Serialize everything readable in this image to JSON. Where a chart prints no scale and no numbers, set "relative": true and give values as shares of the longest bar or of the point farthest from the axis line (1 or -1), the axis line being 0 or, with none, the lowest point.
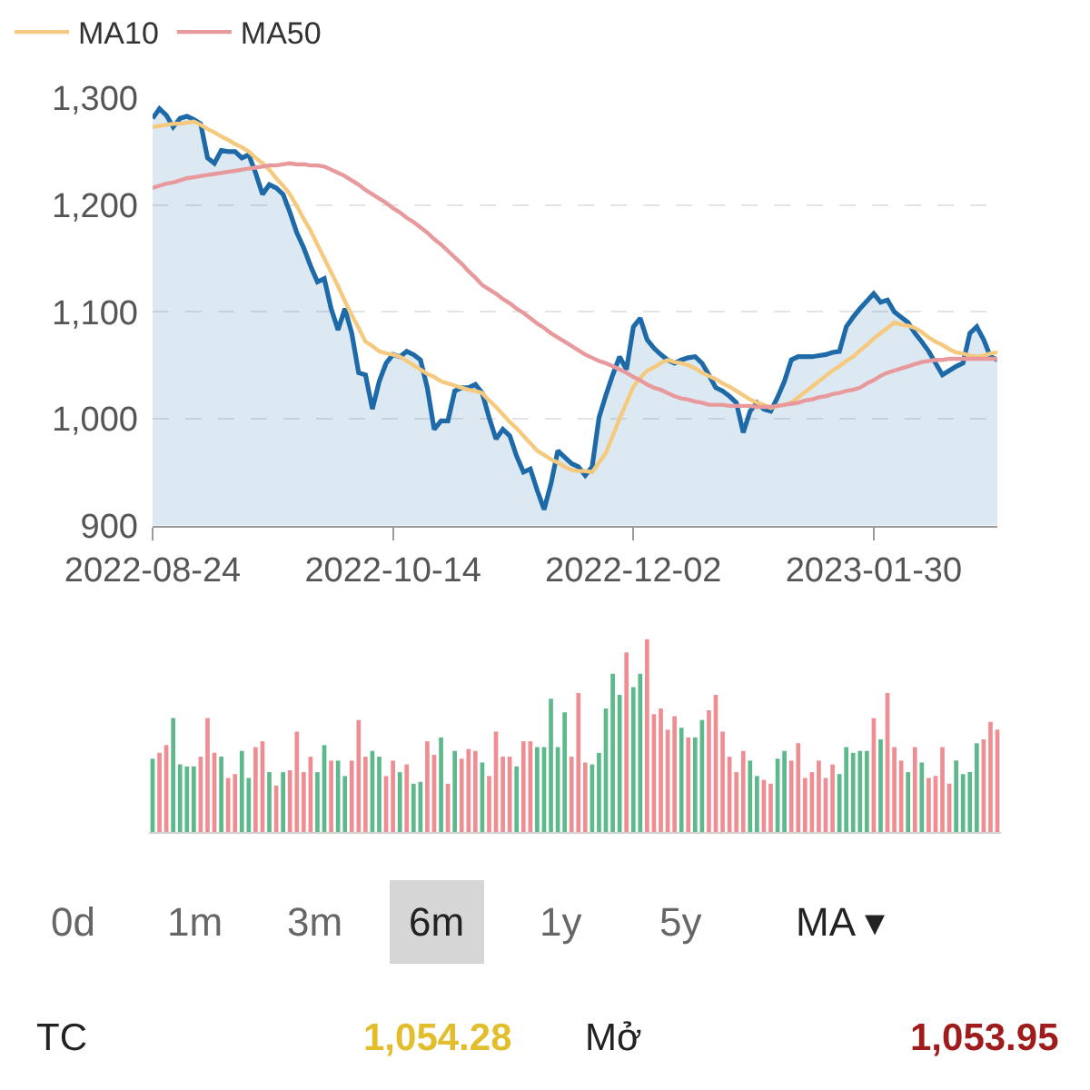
{
  "chart_data": [
    {
      "type": "area",
      "categories": [
        "2022-08-24",
        null,
        null,
        null,
        null,
        null,
        null,
        null,
        null,
        null,
        null,
        null,
        null,
        null,
        null,
        null,
        null,
        null,
        null,
        null,
        null,
        null,
        null,
        null,
        null,
        null,
        null,
        null,
        null,
        null,
        null,
        null,
        null,
        null,
        null,
        "2022-10-14",
        null,
        null,
        null,
        null,
        null,
        null,
        null,
        null,
        null,
        null,
        null,
        null,
        null,
        null,
        null,
        null,
        null,
        null,
        null,
        null,
        null,
        null,
        null,
        null,
        null,
        null,
        null,
        null,
        null,
        null,
        null,
        null,
        null,
        null,
        "2022-12-02",
        null,
        null,
        null,
        null,
        null,
        null,
        null,
        null,
        null,
        null,
        null,
        null,
        null,
        null,
        null,
        null,
        null,
        null,
        null,
        null,
        null,
        null,
        null,
        null,
        null,
        null,
        null,
        null,
        null,
        null,
        null,
        null,
        null,
        null,
        "2023-01-30",
        null,
        null,
        null,
        null,
        null,
        null,
        null,
        null,
        null,
        null,
        null,
        null,
        null,
        null,
        null,
        null,
        null,
        null
      ],
      "ylim": [
        900,
        1300
      ],
      "yticks": [
        900,
        {
          "value": 1000,
          "label": "1,000"
        },
        {
          "value": 1100,
          "label": "1,100"
        },
        {
          "value": 1200,
          "label": "1,200"
        },
        {
          "value": 1300,
          "label": "1,300"
        }
      ],
      "grid": "y",
      "legend": "top left",
      "series": [
        {
          "type": "area",
          "color": "#1e6aa8",
          "values": [
            1281,
            1290,
            1284,
            1273,
            1281,
            1283,
            1280,
            1276,
            1244,
            1239,
            1251,
            1250,
            1250,
            1244,
            1247,
            1230,
            1210,
            1219,
            1216,
            1210,
            1193,
            1174,
            1160,
            1143,
            1128,
            1131,
            1103,
            1083,
            1103,
            1080,
            1043,
            1041,
            1009,
            1035,
            1052,
            1060,
            1058,
            1063,
            1060,
            1055,
            1029,
            990,
            998,
            998,
            1026,
            1029,
            1029,
            1032,
            1024,
            1001,
            981,
            990,
            984,
            965,
            950,
            953,
            933,
            915,
            939,
            970,
            964,
            958,
            955,
            947,
            955,
            1001,
            1022,
            1041,
            1058,
            1046,
            1086,
            1094,
            1074,
            1066,
            1060,
            1055,
            1052,
            1055,
            1057,
            1058,
            1052,
            1041,
            1029,
            1026,
            1021,
            1015,
            987,
            1007,
            1015,
            1009,
            1007,
            1020,
            1035,
            1055,
            1058,
            1058,
            1058,
            1059,
            1060,
            1062,
            1063,
            1086,
            1095,
            1103,
            1110,
            1117,
            1109,
            1111,
            1100,
            1095,
            1090,
            1080,
            1072,
            1063,
            1052,
            1041,
            1045,
            1049,
            1052,
            1080,
            1086,
            1074,
            1058,
            1055
          ]
        },
        {
          "type": "line",
          "name": "MA10",
          "color": "#f5c97e",
          "values": [
            1273,
            1274,
            1275,
            1276,
            1276,
            1277,
            1278,
            1275,
            1271,
            1268,
            1264,
            1261,
            1257,
            1254,
            1250,
            1244,
            1239,
            1233,
            1225,
            1218,
            1210,
            1199,
            1187,
            1176,
            1163,
            1150,
            1137,
            1124,
            1110,
            1097,
            1085,
            1072,
            1068,
            1063,
            1061,
            1060,
            1058,
            1054,
            1050,
            1046,
            1042,
            1039,
            1035,
            1033,
            1031,
            1029,
            1027,
            1026,
            1024,
            1017,
            1011,
            1004,
            997,
            991,
            984,
            977,
            970,
            966,
            962,
            959,
            955,
            952,
            951,
            951,
            950,
            959,
            968,
            984,
            1000,
            1015,
            1030,
            1038,
            1045,
            1048,
            1052,
            1055,
            1053,
            1052,
            1050,
            1047,
            1043,
            1040,
            1037,
            1033,
            1030,
            1026,
            1022,
            1018,
            1015,
            1013,
            1010,
            1012,
            1013,
            1015,
            1020,
            1025,
            1030,
            1035,
            1040,
            1045,
            1049,
            1054,
            1058,
            1064,
            1069,
            1075,
            1080,
            1085,
            1090,
            1088,
            1087,
            1085,
            1081,
            1076,
            1072,
            1069,
            1065,
            1062,
            1061,
            1059,
            1058,
            1059,
            1061,
            1062
          ]
        },
        {
          "type": "line",
          "name": "MA50",
          "color": "#e7999b",
          "values": [
            1216,
            1218,
            1220,
            1221,
            1223,
            1225,
            1226,
            1227,
            1228,
            1229,
            1230,
            1231,
            1232,
            1233,
            1234,
            1235,
            1236,
            1237,
            1237,
            1238,
            1239,
            1238,
            1238,
            1237,
            1237,
            1236,
            1233,
            1230,
            1227,
            1223,
            1219,
            1214,
            1210,
            1206,
            1202,
            1197,
            1193,
            1188,
            1184,
            1179,
            1174,
            1168,
            1163,
            1157,
            1151,
            1145,
            1138,
            1132,
            1125,
            1121,
            1117,
            1112,
            1108,
            1103,
            1099,
            1094,
            1089,
            1085,
            1080,
            1076,
            1072,
            1068,
            1064,
            1060,
            1057,
            1054,
            1052,
            1049,
            1046,
            1043,
            1039,
            1036,
            1032,
            1029,
            1027,
            1024,
            1021,
            1019,
            1018,
            1016,
            1015,
            1013,
            1013,
            1013,
            1012,
            1012,
            1012,
            1012,
            1011,
            1011,
            1011,
            1012,
            1013,
            1014,
            1015,
            1017,
            1018,
            1020,
            1021,
            1023,
            1024,
            1026,
            1027,
            1029,
            1033,
            1036,
            1040,
            1043,
            1045,
            1047,
            1049,
            1051,
            1053,
            1054,
            1055,
            1055,
            1056,
            1056,
            1056,
            1056,
            1056,
            1056,
            1056,
            1056
          ]
        }
      ]
    },
    {
      "type": "bar",
      "relative": true,
      "categories": [
        null,
        null,
        null,
        null,
        null,
        null,
        null,
        null,
        null,
        null,
        null,
        null,
        null,
        null,
        null,
        null,
        null,
        null,
        null,
        null,
        null,
        null,
        null,
        null,
        null,
        null,
        null,
        null,
        null,
        null,
        null,
        null,
        null,
        null,
        null,
        null,
        null,
        null,
        null,
        null,
        null,
        null,
        null,
        null,
        null,
        null,
        null,
        null,
        null,
        null,
        null,
        null,
        null,
        null,
        null,
        null,
        null,
        null,
        null,
        null,
        null,
        null,
        null,
        null,
        null,
        null,
        null,
        null,
        null,
        null,
        null,
        null,
        null,
        null,
        null,
        null,
        null,
        null,
        null,
        null,
        null,
        null,
        null,
        null,
        null,
        null,
        null,
        null,
        null,
        null,
        null,
        null,
        null,
        null,
        null,
        null,
        null,
        null,
        null,
        null,
        null,
        null,
        null,
        null,
        null,
        null,
        null,
        null,
        null,
        null,
        null,
        null,
        null,
        null,
        null,
        null,
        null,
        null,
        null,
        null,
        null,
        null,
        null,
        null
      ],
      "values": [
        0.38,
        0.41,
        0.45,
        0.59,
        0.35,
        0.34,
        0.34,
        0.39,
        0.59,
        0.41,
        0.39,
        0.28,
        0.3,
        0.42,
        0.28,
        0.44,
        0.47,
        0.31,
        0.24,
        0.31,
        0.32,
        0.52,
        0.31,
        0.39,
        0.31,
        0.45,
        0.37,
        0.37,
        0.29,
        0.37,
        0.58,
        0.39,
        0.42,
        0.39,
        0.29,
        0.37,
        0.31,
        0.35,
        0.25,
        0.26,
        0.47,
        0.4,
        0.49,
        0.25,
        0.42,
        0.38,
        0.43,
        0.42,
        0.36,
        0.29,
        0.52,
        0.39,
        0.39,
        0.34,
        0.47,
        0.47,
        0.44,
        0.44,
        0.69,
        0.44,
        0.62,
        0.39,
        0.72,
        0.36,
        0.35,
        0.41,
        0.64,
        0.82,
        0.71,
        0.93,
        0.75,
        0.82,
        1.0,
        0.61,
        0.64,
        0.53,
        0.6,
        0.54,
        0.49,
        0.49,
        0.58,
        0.63,
        0.71,
        0.52,
        0.39,
        0.31,
        0.42,
        0.37,
        0.29,
        0.27,
        0.25,
        0.38,
        0.42,
        0.37,
        0.46,
        0.28,
        0.31,
        0.37,
        0.28,
        0.35,
        0.3,
        0.44,
        0.41,
        0.42,
        0.42,
        0.59,
        0.48,
        0.72,
        0.44,
        0.37,
        0.31,
        0.44,
        0.36,
        0.28,
        0.29,
        0.44,
        0.25,
        0.37,
        0.3,
        0.31,
        0.46,
        0.48,
        0.57,
        0.53
      ],
      "colors": [
        "#5bb98b",
        "#ee8e92",
        "#ee8e92",
        "#5bb98b",
        "#5bb98b",
        "#5bb98b",
        "#5bb98b",
        "#ee8e92",
        "#ee8e92",
        "#ee8e92",
        "#5bb98b",
        "#ee8e92",
        "#ee8e92",
        "#5bb98b",
        "#5bb98b",
        "#ee8e92",
        "#ee8e92",
        "#5bb98b",
        "#ee8e92",
        "#5bb98b",
        "#ee8e92",
        "#ee8e92",
        "#ee8e92",
        "#ee8e92",
        "#5bb98b",
        "#5bb98b",
        "#ee8e92",
        "#5bb98b",
        "#5bb98b",
        "#ee8e92",
        "#ee8e92",
        "#ee8e92",
        "#5bb98b",
        "#5bb98b",
        "#ee8e92",
        "#ee8e92",
        "#5bb98b",
        "#ee8e92",
        "#5bb98b",
        "#5bb98b",
        "#ee8e92",
        "#ee8e92",
        "#5bb98b",
        "#ee8e92",
        "#5bb98b",
        "#ee8e92",
        "#ee8e92",
        "#ee8e92",
        "#5bb98b",
        "#ee8e92",
        "#ee8e92",
        "#ee8e92",
        "#ee8e92",
        "#5bb98b",
        "#ee8e92",
        "#ee8e92",
        "#5bb98b",
        "#5bb98b",
        "#5bb98b",
        "#5bb98b",
        "#5bb98b",
        "#ee8e92",
        "#ee8e92",
        "#ee8e92",
        "#5bb98b",
        "#5bb98b",
        "#5bb98b",
        "#5bb98b",
        "#5bb98b",
        "#ee8e92",
        "#5bb98b",
        "#5bb98b",
        "#ee8e92",
        "#ee8e92",
        "#ee8e92",
        "#ee8e92",
        "#ee8e92",
        "#5bb98b",
        "#ee8e92",
        "#5bb98b",
        "#5bb98b",
        "#ee8e92",
        "#ee8e92",
        "#ee8e92",
        "#ee8e92",
        "#ee8e92",
        "#ee8e92",
        "#5bb98b",
        "#5bb98b",
        "#ee8e92",
        "#ee8e92",
        "#5bb98b",
        "#5bb98b",
        "#ee8e92",
        "#ee8e92",
        "#ee8e92",
        "#ee8e92",
        "#ee8e92",
        "#ee8e92",
        "#ee8e92",
        "#5bb98b",
        "#5bb98b",
        "#5bb98b",
        "#5bb98b",
        "#5bb98b",
        "#ee8e92",
        "#5bb98b",
        "#ee8e92",
        "#ee8e92",
        "#ee8e92",
        "#5bb98b",
        "#ee8e92",
        "#5bb98b",
        "#ee8e92",
        "#ee8e92",
        "#ee8e92",
        "#ee8e92",
        "#5bb98b",
        "#5bb98b",
        "#5bb98b",
        "#5bb98b",
        "#ee8e92",
        "#ee8e92",
        "#ee8e92"
      ],
      "annotations": [
        "0d",
        "1m",
        "3m",
        "6m",
        "1y",
        "5y",
        "MA ▾",
        "TC",
        "1,054.28",
        "Mở",
        "1,053.95"
      ]
    }
  ]
}
